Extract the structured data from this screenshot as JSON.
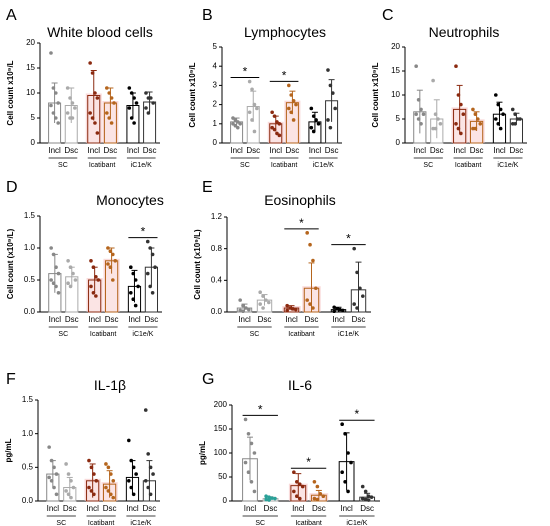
{
  "figure": {
    "tick_mark_note": "x10⁹/L"
  },
  "chart_data": [
    {
      "id": "A",
      "panel_label": "A",
      "title": "White blood cells",
      "type": "bar",
      "ylabel": "Cell count x10⁹/L",
      "ylim": [
        0,
        20
      ],
      "yticks": [
        0,
        5,
        10,
        15,
        20
      ],
      "categories": [
        "Incl",
        "Dsc",
        "Incl",
        "Dsc",
        "Incl",
        "Dsc"
      ],
      "groups": [
        "SC",
        "Icatibant",
        "iC1e/K"
      ],
      "values": [
        8,
        7.5,
        9.5,
        8,
        7.5,
        8.2
      ],
      "errors": [
        4,
        3.5,
        5,
        3,
        2.5,
        2
      ],
      "points": [
        [
          18,
          11,
          10,
          8,
          7.5,
          6,
          5,
          4
        ],
        [
          11,
          9,
          8,
          7,
          6,
          5,
          5
        ],
        [
          16,
          14,
          10,
          9,
          6,
          5,
          4,
          2
        ],
        [
          11,
          10,
          9,
          8,
          6,
          5,
          4
        ],
        [
          11,
          10,
          9,
          8,
          7,
          5,
          4
        ],
        [
          10,
          9,
          9,
          8,
          7,
          6
        ]
      ],
      "significance": []
    },
    {
      "id": "B",
      "panel_label": "B",
      "title": "Lymphocytes",
      "type": "bar",
      "ylabel": "Cell count x10⁹/L",
      "ylim": [
        0,
        5
      ],
      "yticks": [
        0,
        1,
        2,
        3,
        4,
        5
      ],
      "categories": [
        "Incl",
        "Dsc",
        "Incl",
        "Dsc",
        "Incl",
        "Dsc"
      ],
      "groups": [
        "SC",
        "Icatibant",
        "iC1e/K"
      ],
      "values": [
        1.1,
        1.9,
        1.0,
        2.1,
        1.1,
        2.2
      ],
      "errors": [
        0.2,
        0.8,
        0.4,
        0.6,
        0.5,
        1.1
      ],
      "points": [
        [
          1.3,
          1.2,
          1.1,
          1.0,
          1.0,
          0.9,
          0.8
        ],
        [
          3.2,
          2.8,
          2.0,
          1.8,
          1.6,
          1.2,
          0.6
        ],
        [
          1.6,
          1.4,
          1.1,
          1.0,
          0.8,
          0.7,
          0.5,
          0.4
        ],
        [
          3.0,
          2.5,
          2.2,
          2.0,
          1.8,
          1.6,
          1.2
        ],
        [
          1.8,
          1.4,
          1.2,
          1.0,
          0.8,
          0.6
        ],
        [
          3.8,
          3.0,
          2.6,
          1.8,
          1.2,
          0.8
        ]
      ],
      "significance": [
        [
          0,
          1
        ],
        [
          2,
          3
        ]
      ],
      "significance_label": "*"
    },
    {
      "id": "C",
      "panel_label": "C",
      "title": "Neutrophils",
      "type": "bar",
      "ylabel": "Cell count x10⁹/L",
      "ylim": [
        0,
        20
      ],
      "yticks": [
        0,
        5,
        10,
        15,
        20
      ],
      "categories": [
        "Incl",
        "Dsc",
        "Incl",
        "Dsc",
        "Incl",
        "Dsc"
      ],
      "groups": [
        "SC",
        "Icatibant",
        "iC1e/K"
      ],
      "values": [
        6.5,
        5,
        7,
        4.5,
        6,
        5
      ],
      "errors": [
        4.5,
        4,
        5,
        2,
        2.5,
        1.2
      ],
      "points": [
        [
          16,
          9,
          7,
          6,
          6,
          5,
          4
        ],
        [
          13,
          6,
          5,
          4,
          3,
          3
        ],
        [
          16,
          10,
          8,
          6,
          4,
          3,
          2
        ],
        [
          7,
          6,
          5,
          4,
          3,
          3
        ],
        [
          10,
          8,
          7,
          6,
          5,
          4,
          3
        ],
        [
          7,
          6,
          5,
          5,
          4,
          4
        ]
      ],
      "significance": []
    },
    {
      "id": "D",
      "panel_label": "D",
      "title": "Monocytes",
      "type": "bar",
      "ylabel": "Cell count (x10⁹/L)",
      "ylim": [
        0,
        1.5
      ],
      "yticks": [
        0.0,
        0.5,
        1.0,
        1.5
      ],
      "categories": [
        "Incl",
        "Dsc",
        "Incl",
        "Dsc",
        "Incl",
        "Dsc"
      ],
      "groups": [
        "SC",
        "Icatibant",
        "iC1e/K"
      ],
      "values": [
        0.6,
        0.55,
        0.5,
        0.8,
        0.4,
        0.7
      ],
      "errors": [
        0.3,
        0.15,
        0.2,
        0.2,
        0.25,
        0.3
      ],
      "points": [
        [
          1.0,
          0.9,
          0.7,
          0.6,
          0.5,
          0.45,
          0.4,
          0.3
        ],
        [
          0.8,
          0.7,
          0.6,
          0.5,
          0.45,
          0.4
        ],
        [
          0.8,
          0.7,
          0.55,
          0.5,
          0.4,
          0.3,
          0.25
        ],
        [
          1.0,
          0.95,
          0.9,
          0.8,
          0.75,
          0.7,
          0.5
        ],
        [
          0.7,
          0.6,
          0.5,
          0.4,
          0.3,
          0.2,
          0.1
        ],
        [
          1.1,
          1.0,
          0.9,
          0.7,
          0.6,
          0.4,
          0.3
        ]
      ],
      "significance": [
        [
          4,
          5
        ]
      ],
      "significance_label": "*"
    },
    {
      "id": "E",
      "panel_label": "E",
      "title": "Eosinophils",
      "type": "bar",
      "ylabel": "Cell count (x10⁹/L)",
      "ylim": [
        0,
        1.2
      ],
      "yticks": [
        0.0,
        0.4,
        0.8,
        1.2
      ],
      "categories": [
        "Incl",
        "Dsc",
        "Incl",
        "Dsc",
        "Incl",
        "Dsc"
      ],
      "groups": [
        "SC",
        "Icatibant",
        "iC1e/K"
      ],
      "values": [
        0.05,
        0.15,
        0.05,
        0.3,
        0.03,
        0.28
      ],
      "errors": [
        0.05,
        0.07,
        0.03,
        0.32,
        0.03,
        0.35
      ],
      "points": [
        [
          0.15,
          0.08,
          0.05,
          0.03,
          0.02,
          0.01
        ],
        [
          0.25,
          0.2,
          0.15,
          0.12,
          0.1,
          0.05
        ],
        [
          0.08,
          0.05,
          0.04,
          0.03,
          0.02
        ],
        [
          1.0,
          0.85,
          0.65,
          0.3,
          0.15,
          0.1,
          0.05
        ],
        [
          0.06,
          0.04,
          0.03,
          0.02,
          0.01
        ],
        [
          0.8,
          0.5,
          0.3,
          0.2,
          0.1,
          0.05
        ]
      ],
      "significance": [
        [
          2,
          3
        ],
        [
          4,
          5
        ]
      ],
      "significance_label": "*"
    },
    {
      "id": "F",
      "panel_label": "F",
      "title": "IL-1β",
      "type": "bar",
      "ylabel": "pg/mL",
      "ylim": [
        0,
        1.5
      ],
      "yticks": [
        0.0,
        0.5,
        1.0,
        1.5
      ],
      "categories": [
        "Incl",
        "Dsc",
        "Incl",
        "Dsc",
        "Incl",
        "Dsc"
      ],
      "groups": [
        "SC",
        "Icatibant",
        "iC1e/K"
      ],
      "values": [
        0.4,
        0.2,
        0.3,
        0.25,
        0.35,
        0.3
      ],
      "errors": [
        0.2,
        0.15,
        0.25,
        0.2,
        0.25,
        0.3
      ],
      "points": [
        [
          0.8,
          0.6,
          0.5,
          0.4,
          0.35,
          0.3,
          0.2,
          0.1
        ],
        [
          0.55,
          0.4,
          0.3,
          0.2,
          0.15,
          0.1,
          0.05
        ],
        [
          0.6,
          0.5,
          0.4,
          0.3,
          0.2,
          0.15,
          0.1
        ],
        [
          0.55,
          0.5,
          0.4,
          0.3,
          0.2,
          0.15,
          0.1,
          0.05
        ],
        [
          0.9,
          0.6,
          0.5,
          0.4,
          0.3,
          0.2,
          0.1
        ],
        [
          1.35,
          0.7,
          0.5,
          0.4,
          0.3,
          0.2,
          0.1
        ]
      ],
      "significance": []
    },
    {
      "id": "G",
      "panel_label": "G",
      "title": "IL-6",
      "type": "bar",
      "ylabel": "pg/mL",
      "ylim": [
        0,
        200
      ],
      "yticks": [
        0,
        50,
        100,
        150,
        200
      ],
      "categories": [
        "Incl",
        "Dsc",
        "Incl",
        "Dsc",
        "Incl",
        "Dsc"
      ],
      "groups": [
        "SC",
        "Icatibant",
        "iC1e/K"
      ],
      "values": [
        88,
        5,
        32,
        12,
        82,
        8
      ],
      "errors": [
        45,
        4,
        25,
        10,
        60,
        8
      ],
      "points": [
        [
          170,
          140,
          120,
          100,
          80,
          60,
          40,
          20
        ],
        [
          10,
          8,
          6,
          5,
          3,
          2
        ],
        [
          60,
          40,
          35,
          30,
          20,
          10,
          5
        ],
        [
          40,
          30,
          15,
          10,
          5,
          3
        ],
        [
          160,
          140,
          100,
          80,
          60,
          40,
          20
        ],
        [
          30,
          20,
          10,
          8,
          5,
          3,
          2
        ]
      ],
      "significance": [
        [
          0,
          1
        ],
        [
          2,
          3
        ],
        [
          4,
          5
        ]
      ],
      "significance_label": "*"
    }
  ]
}
